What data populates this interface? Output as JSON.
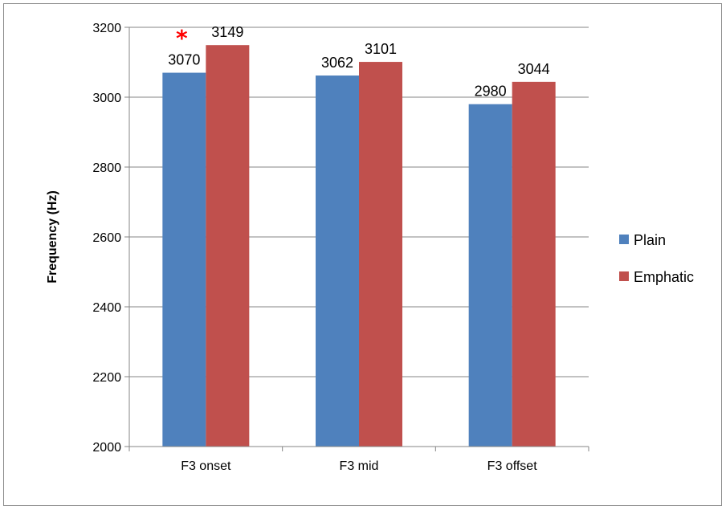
{
  "chart_data": {
    "type": "bar",
    "title": "",
    "xlabel": "",
    "ylabel": "Frequency (Hz)",
    "ylim": [
      2000,
      3200
    ],
    "yticks": [
      2000,
      2200,
      2400,
      2600,
      2800,
      3000,
      3200
    ],
    "ytick_labels": [
      "2000",
      "2200",
      "2400",
      "2600",
      "2800",
      "3000",
      "3200"
    ],
    "categories": [
      "F3 onset",
      "F3 mid",
      "F3 offset"
    ],
    "series": [
      {
        "name": "Plain",
        "color": "#4f81bd",
        "values": [
          3070,
          3062,
          2980
        ],
        "labels": [
          "3070",
          "3062",
          "2980"
        ]
      },
      {
        "name": "Emphatic",
        "color": "#c0504d",
        "values": [
          3149,
          3101,
          3044
        ],
        "labels": [
          "3149",
          "3101",
          "3044"
        ]
      }
    ],
    "grid": true,
    "legend": "right",
    "annotations": [
      {
        "text": "*",
        "category": "F3 onset",
        "color": "#ff0000"
      }
    ]
  }
}
